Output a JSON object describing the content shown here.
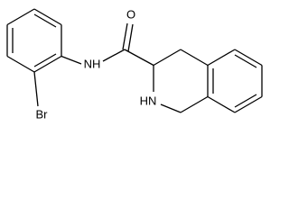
{
  "labels": [
    "O",
    "NH",
    "Br",
    "HN"
  ]
}
